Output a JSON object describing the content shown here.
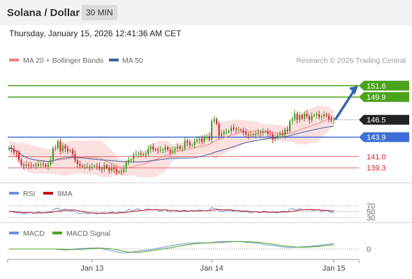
{
  "header": {
    "title": "Solana / Dollar",
    "interval": "30 MIN"
  },
  "datetime": "Thursday, January 15, 2026 12:41:36 AM CET",
  "legend": {
    "ma20_bb": "MA 20 + Bollinger Bands",
    "ma50": "MA 50",
    "credit": "Research © 2026 Trading Central"
  },
  "rsi_legend": {
    "rsi": "RSI",
    "ma9": "9MA"
  },
  "macd_legend": {
    "macd": "MACD",
    "signal": "MACD Signal"
  },
  "colors": {
    "bullish": "#3b9b1f",
    "bearish": "#d0202e",
    "ma20": "#f08080",
    "ma50": "#3a5f9e",
    "bands": "#f7c6c6",
    "resistance": "#4aa31a",
    "support_blue": "#3b6fd6",
    "support_red": "#e66a6a",
    "current": "#222222",
    "arrow": "#3166b2",
    "rsi": "#6a8ed8",
    "rsi_ma": "#c0101a",
    "macd": "#6a8ed8",
    "macd_signal": "#4aa31a"
  },
  "chart_data": {
    "type": "candlestick",
    "y_range": [
      137.5,
      154.5
    ],
    "levels": [
      {
        "value": 151.6,
        "label": "151.6",
        "style": "resistance"
      },
      {
        "value": 149.9,
        "label": "149.9",
        "style": "resistance"
      },
      {
        "value": 146.5,
        "label": "146.5",
        "style": "current"
      },
      {
        "value": 143.9,
        "label": "143.9",
        "style": "support_blue"
      },
      {
        "value": 141.0,
        "label": "141.0",
        "style": "support_red"
      },
      {
        "value": 139.3,
        "label": "139.3",
        "style": "support_red"
      }
    ],
    "x_ticks": [
      "Jan 13",
      "Jan 14",
      "Jan 15"
    ],
    "x_tick_index": [
      34,
      83,
      133
    ],
    "closes": [
      142.3,
      142.1,
      141.6,
      141.5,
      140.5,
      139.7,
      139.6,
      139.8,
      139.7,
      139.6,
      139.7,
      139.6,
      139.9,
      139.9,
      139.8,
      139.5,
      139.8,
      140.5,
      142.2,
      142.3,
      143.3,
      141.8,
      142.6,
      142.2,
      141.8,
      141.9,
      141.4,
      140.4,
      139.9,
      139.6,
      139.5,
      139.5,
      139.5,
      139.4,
      139.5,
      139.6,
      139.5,
      139.2,
      139.1,
      139.7,
      139.3,
      138.9,
      139.4,
      139.1,
      138.6,
      138.8,
      138.7,
      139.2,
      140.1,
      140.5,
      140.6,
      141.3,
      141.4,
      141.5,
      141.3,
      141.3,
      141.4,
      142.1,
      142.5,
      142.1,
      142.0,
      141.9,
      142.0,
      142.0,
      142.4,
      142.0,
      141.6,
      141.9,
      142.2,
      142.5,
      142.2,
      142.2,
      143.4,
      143.1,
      142.7,
      142.7,
      143.3,
      143.5,
      143.7,
      143.2,
      144.0,
      144.0,
      143.6,
      146.3,
      146.6,
      145.9,
      144.1,
      144.4,
      144.7,
      144.7,
      144.8,
      145.3,
      145.1,
      145.0,
      145.0,
      144.9,
      144.6,
      144.3,
      144.2,
      144.3,
      144.2,
      144.4,
      144.6,
      144.5,
      144.8,
      144.8,
      144.4,
      144.3,
      143.6,
      143.8,
      144.2,
      144.4,
      144.2,
      145.0,
      144.8,
      146.3,
      146.6,
      147.4,
      146.5,
      147.2,
      146.7,
      147.4,
      147.0,
      146.5,
      147.1,
      147.2,
      147.3,
      146.9,
      147.0,
      147.3,
      147.1,
      146.6,
      146.4,
      146.5
    ],
    "ma20_bollinger": "MA 20 with upper/lower bands",
    "ma50": "MA 50",
    "projection": {
      "from": 146.5,
      "to": 151.6
    },
    "rsi": {
      "levels": [
        70,
        50,
        30
      ]
    },
    "macd": {
      "zero_label": "0"
    }
  }
}
